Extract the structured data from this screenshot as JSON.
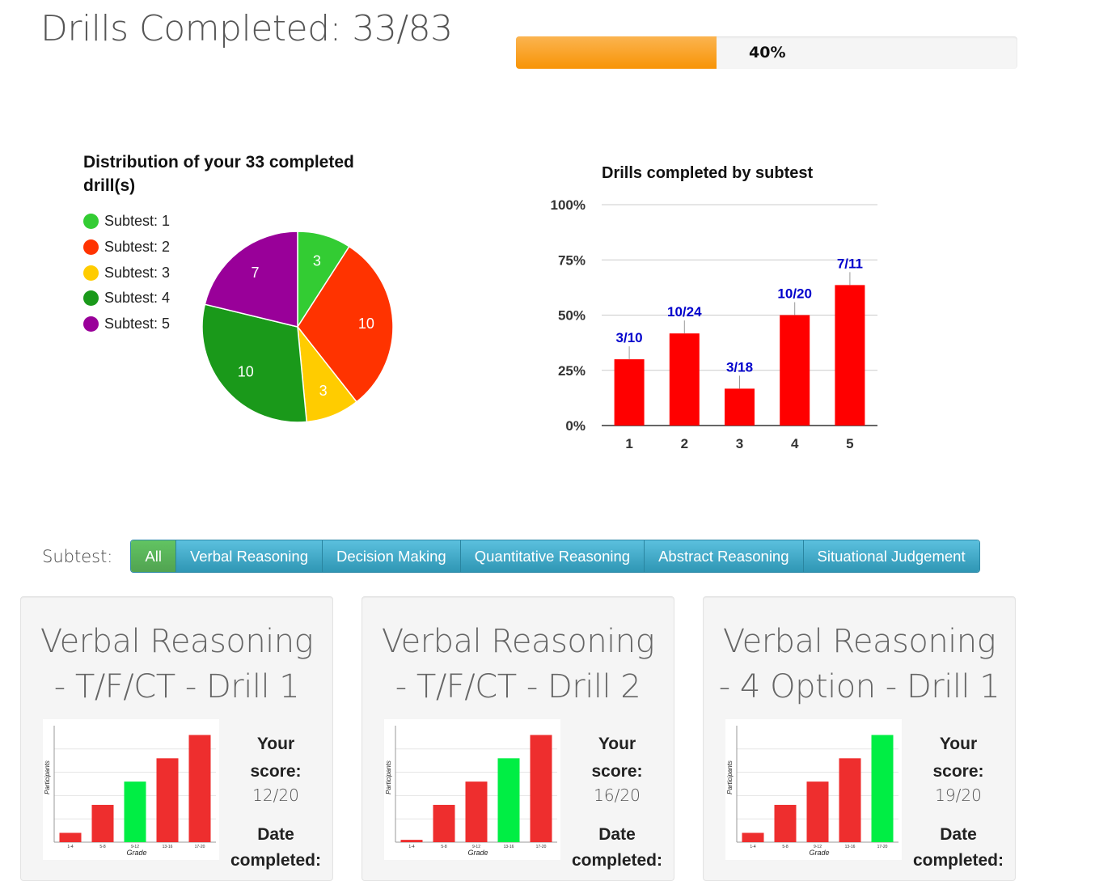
{
  "header": {
    "title": "Drills Completed: 33/83",
    "progress_percent": 40,
    "progress_label": "40%"
  },
  "pie": {
    "title": "Distribution of your 33 completed drill(s)",
    "legend": [
      {
        "label": "Subtest: 1",
        "color": "#33cc33"
      },
      {
        "label": "Subtest: 2",
        "color": "#ff3300"
      },
      {
        "label": "Subtest: 3",
        "color": "#ffcc00"
      },
      {
        "label": "Subtest: 4",
        "color": "#1a991a"
      },
      {
        "label": "Subtest: 5",
        "color": "#990099"
      }
    ]
  },
  "bar": {
    "title": "Drills completed by subtest"
  },
  "chart_data": [
    {
      "type": "pie",
      "title": "Distribution of your 33 completed drill(s)",
      "labels": [
        "Subtest: 1",
        "Subtest: 2",
        "Subtest: 3",
        "Subtest: 4",
        "Subtest: 5"
      ],
      "values": [
        3,
        10,
        3,
        10,
        7
      ],
      "colors": [
        "#33cc33",
        "#ff3300",
        "#ffcc00",
        "#1a991a",
        "#990099"
      ],
      "data_labels": [
        "3",
        "10",
        "3",
        "10",
        "7"
      ],
      "legend_position": "left"
    },
    {
      "type": "bar",
      "title": "Drills completed by subtest",
      "categories": [
        "1",
        "2",
        "3",
        "4",
        "5"
      ],
      "values": [
        30,
        41.7,
        16.7,
        50,
        63.6
      ],
      "data_labels": [
        "3/10",
        "10/24",
        "3/18",
        "10/20",
        "7/11"
      ],
      "yticks": [
        "0%",
        "25%",
        "50%",
        "75%",
        "100%"
      ],
      "ylim": [
        0,
        100
      ],
      "bar_color": "#ff0000",
      "label_color": "#0000cc",
      "grid": true
    },
    {
      "type": "bar",
      "categories": [
        "1-4",
        "5-8",
        "9-12",
        "13-16",
        "17-20"
      ],
      "values": [
        4,
        16,
        26,
        36,
        46
      ],
      "highlight_index": 2,
      "xlabel": "Grade",
      "ylabel": "Participants"
    },
    {
      "type": "bar",
      "categories": [
        "1-4",
        "5-8",
        "9-12",
        "13-16",
        "17-20"
      ],
      "values": [
        1,
        16,
        26,
        36,
        46
      ],
      "highlight_index": 3,
      "xlabel": "Grade",
      "ylabel": "Participants"
    },
    {
      "type": "bar",
      "categories": [
        "1-4",
        "5-8",
        "9-12",
        "13-16",
        "17-20"
      ],
      "values": [
        4,
        16,
        26,
        36,
        46
      ],
      "highlight_index": 4,
      "xlabel": "Grade",
      "ylabel": "Participants"
    }
  ],
  "filter": {
    "label": "Subtest:",
    "buttons": [
      "All",
      "Verbal Reasoning",
      "Decision Making",
      "Quantitative Reasoning",
      "Abstract Reasoning",
      "Situational Judgement"
    ],
    "active_index": 0
  },
  "cards": [
    {
      "title_line1": "Verbal Reasoning",
      "title_line2": "- T/F/CT - Drill 1",
      "score_label_1": "Your",
      "score_label_2": "score:",
      "score": "12/20",
      "date_label_1": "Date",
      "date_label_2": "completed:"
    },
    {
      "title_line1": "Verbal Reasoning",
      "title_line2": "- T/F/CT - Drill 2",
      "score_label_1": "Your",
      "score_label_2": "score:",
      "score": "16/20",
      "date_label_1": "Date",
      "date_label_2": "completed:"
    },
    {
      "title_line1": "Verbal Reasoning",
      "title_line2": "- 4 Option - Drill 1",
      "score_label_1": "Your",
      "score_label_2": "score:",
      "score": "19/20",
      "date_label_1": "Date",
      "date_label_2": "completed:"
    }
  ],
  "colors": {
    "bar_red": "#ee2e2e",
    "bar_green": "#00ee44",
    "progress_orange": "#f89406",
    "btn_blue": "#2f96b4",
    "btn_green": "#51a351"
  }
}
